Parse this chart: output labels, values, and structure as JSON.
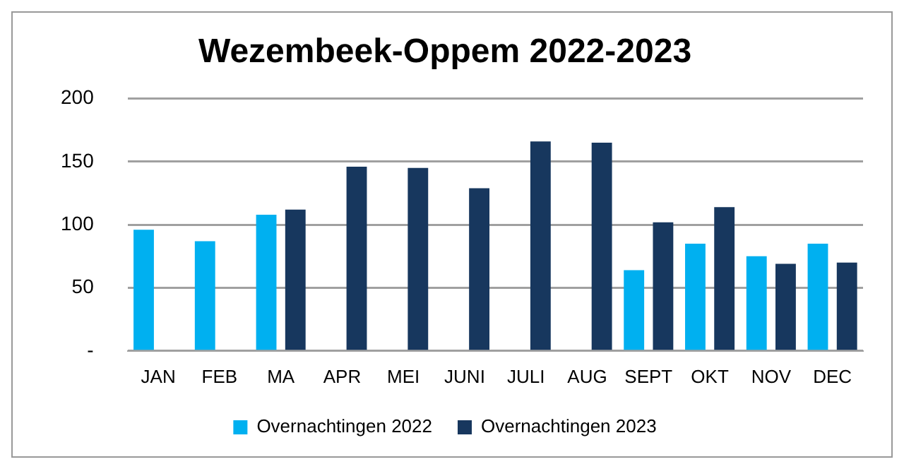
{
  "chart_data": {
    "type": "bar",
    "title": "Wezembeek-Oppem 2022-2023",
    "categories": [
      "JAN",
      "FEB",
      "MA",
      "APR",
      "MEI",
      "JUNI",
      "JULI",
      "AUG",
      "SEPT",
      "OKT",
      "NOV",
      "DEC"
    ],
    "series": [
      {
        "name": "Overnachtingen 2022",
        "color": "#00b0f0",
        "values": [
          96,
          87,
          108,
          null,
          null,
          null,
          null,
          null,
          64,
          85,
          75,
          85
        ]
      },
      {
        "name": "Overnachtingen 2023",
        "color": "#17375e",
        "values": [
          null,
          null,
          112,
          146,
          145,
          129,
          166,
          165,
          102,
          114,
          69,
          70
        ]
      }
    ],
    "ylim": [
      0,
      200
    ],
    "yticks": [
      {
        "value": 0,
        "label": "-"
      },
      50,
      100,
      150,
      200
    ],
    "grid": "y",
    "legend": "bottom"
  }
}
